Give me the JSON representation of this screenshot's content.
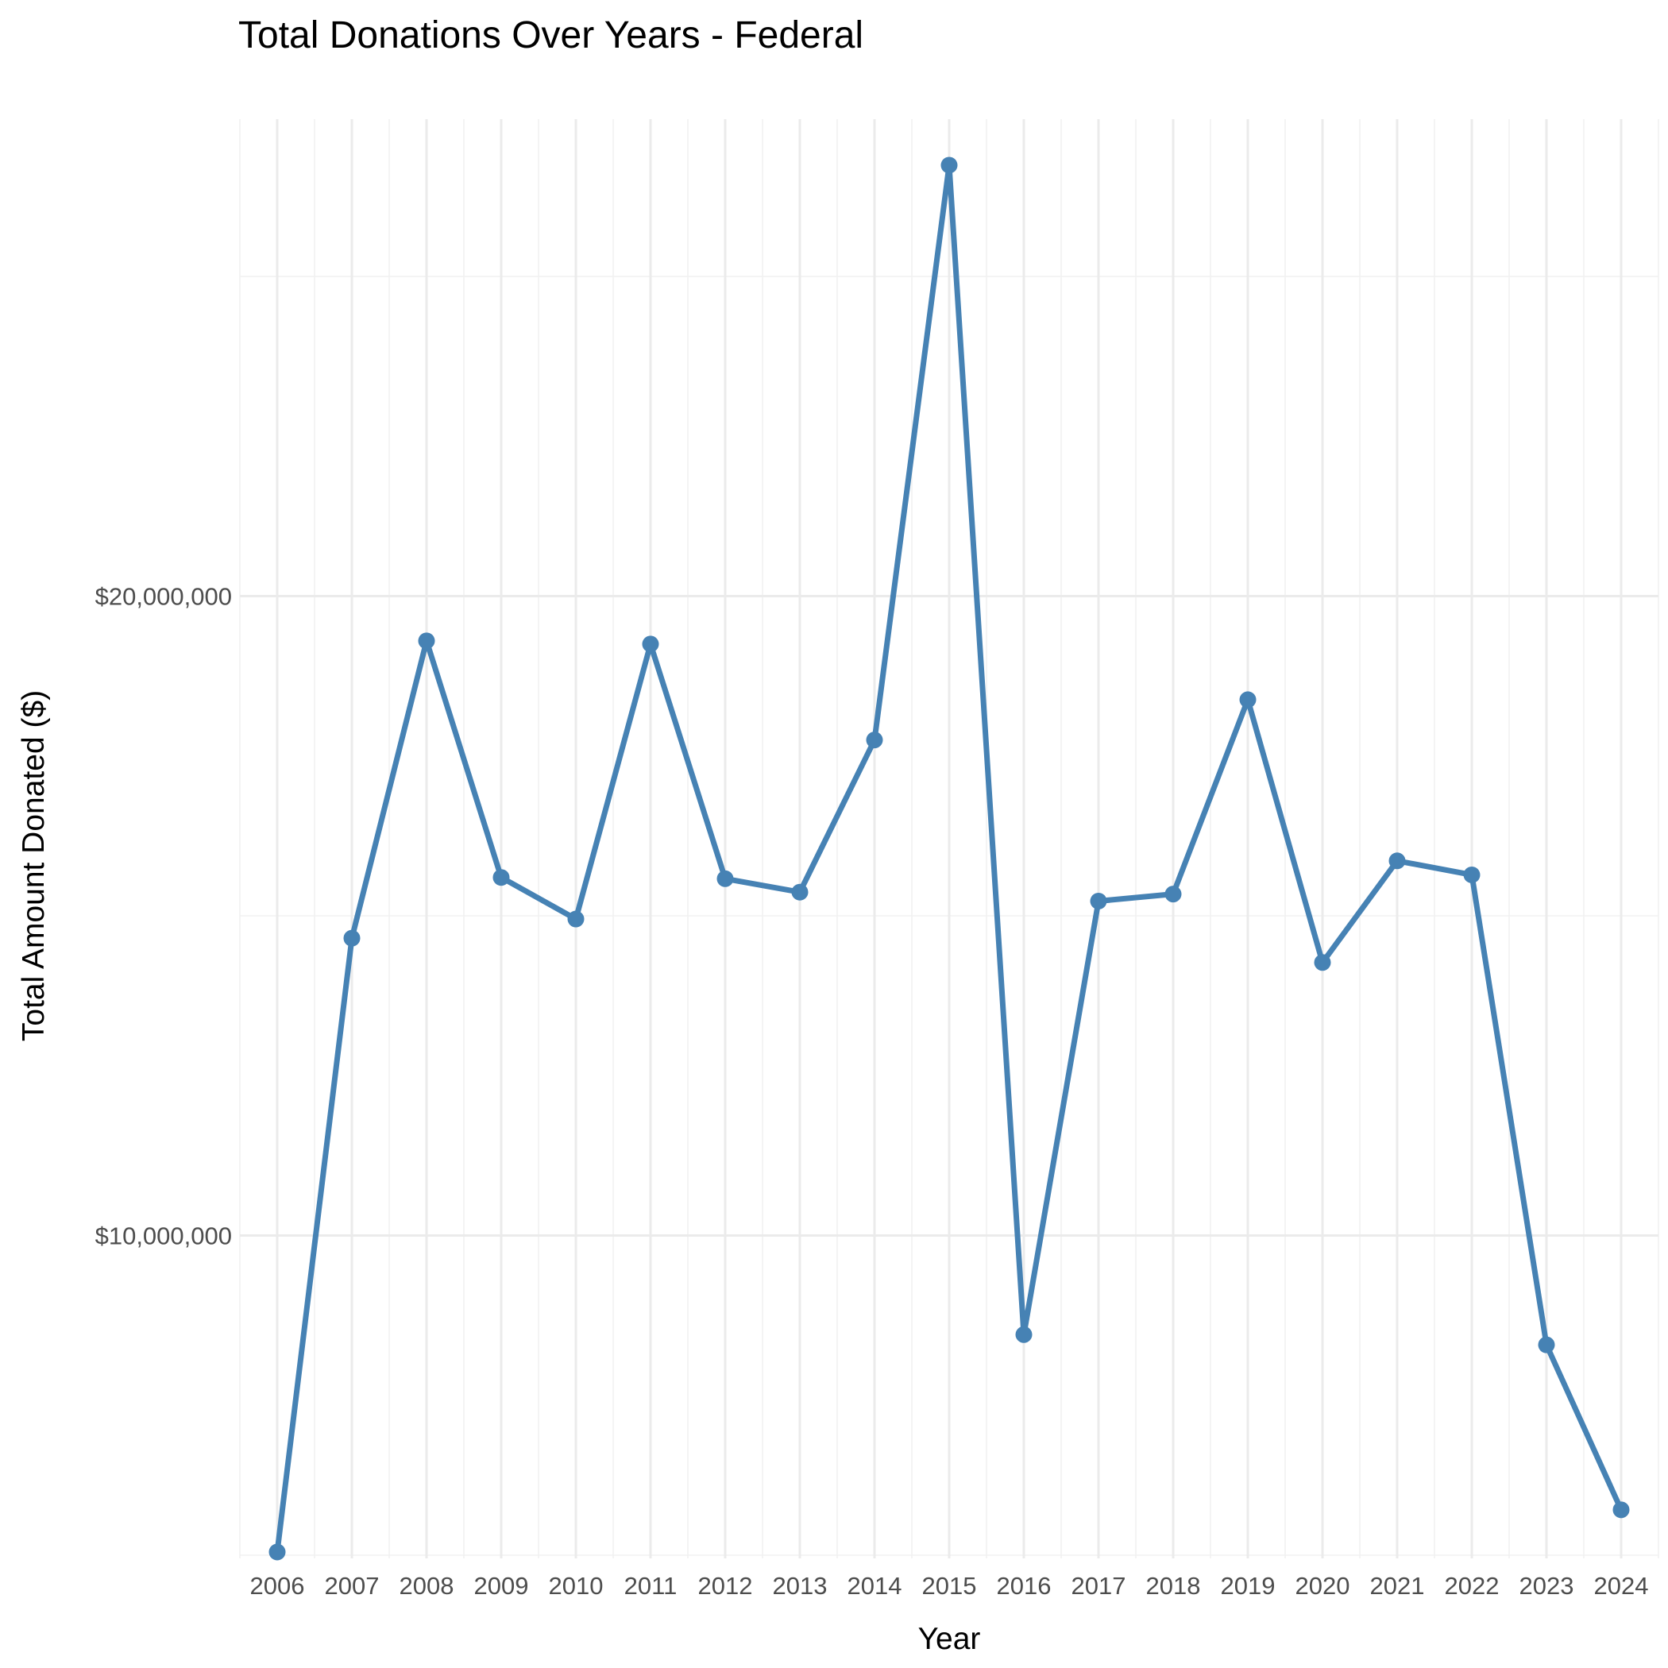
{
  "chart_data": {
    "type": "line",
    "title": "Total Donations Over Years - Federal",
    "xlabel": "Year",
    "ylabel": "Total Amount Donated ($)",
    "x": [
      2006,
      2007,
      2008,
      2009,
      2010,
      2011,
      2012,
      2013,
      2014,
      2015,
      2016,
      2017,
      2018,
      2019,
      2020,
      2021,
      2022,
      2023,
      2024
    ],
    "series": [
      {
        "values": [
          5050000,
          14650000,
          19300000,
          15600000,
          14950000,
          19250000,
          15580000,
          15370000,
          17750000,
          26740000,
          8450000,
          15230000,
          15340000,
          18380000,
          14270000,
          15860000,
          15640000,
          8290000,
          5710000
        ],
        "color": "#4682b4"
      }
    ],
    "ylim": [
      4950000,
      27460000
    ],
    "xlim": [
      2005.5,
      2024.5
    ],
    "y_ticks": [
      10000000,
      20000000
    ],
    "y_tick_labels": [
      "$10,000,000",
      "$20,000,000"
    ],
    "grid": true,
    "legend": "none"
  }
}
